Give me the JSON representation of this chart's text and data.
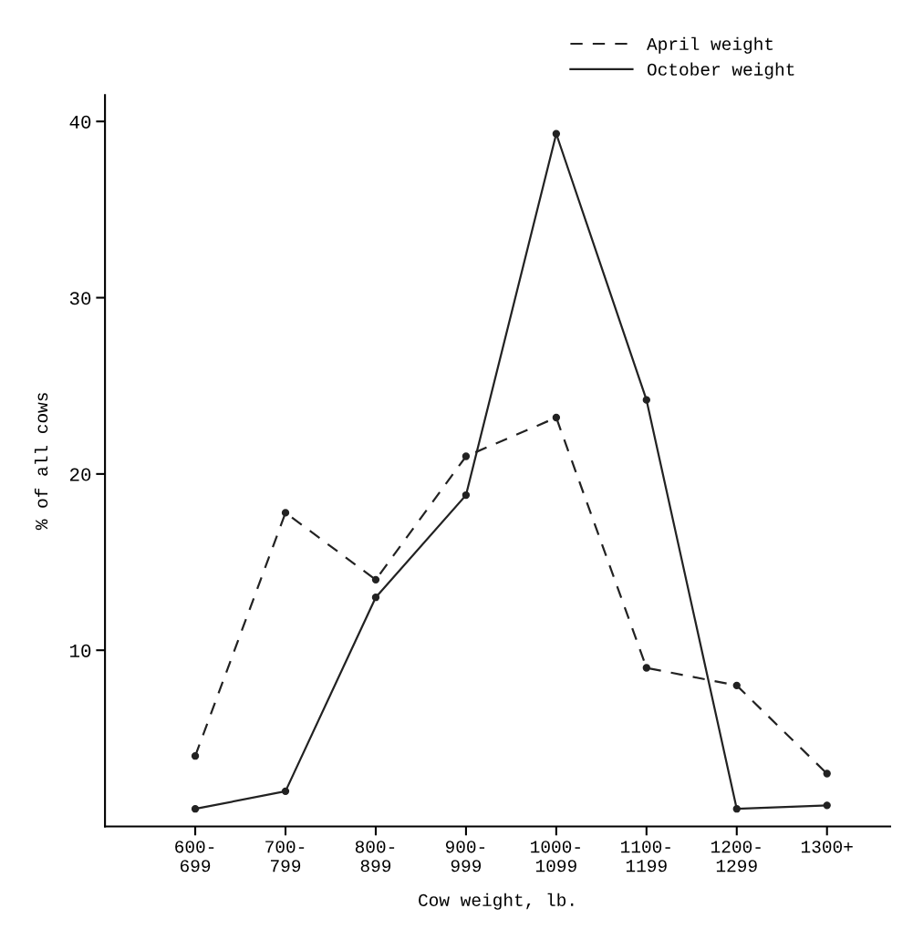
{
  "chart_data": {
    "type": "line",
    "xlabel": "Cow weight, lb.",
    "ylabel": "% of all cows",
    "categories": [
      "600-\n699",
      "700-\n799",
      "800-\n899",
      "900-\n999",
      "1000-\n1099",
      "1100-\n1199",
      "1200-\n1299",
      "1300+"
    ],
    "series": [
      {
        "name": "April weight",
        "color": "#222222",
        "line_style": "dashed",
        "values": [
          4,
          17.8,
          14,
          21,
          23.2,
          9,
          8,
          3
        ]
      },
      {
        "name": "October weight",
        "color": "#222222",
        "line_style": "solid",
        "values": [
          1,
          2,
          13,
          18.8,
          39.3,
          24.2,
          1,
          1.2
        ]
      }
    ],
    "ylim": [
      0,
      41.5
    ],
    "yticks": [
      10,
      20,
      30,
      40
    ],
    "marker": "circle",
    "legend": "top right",
    "grid": false
  }
}
